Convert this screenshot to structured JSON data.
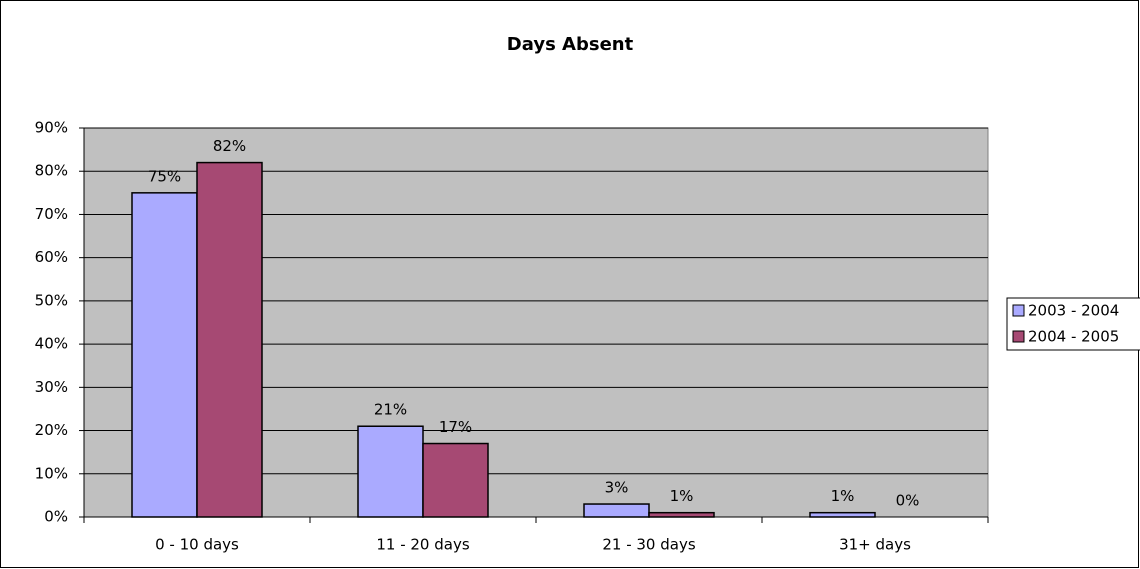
{
  "chart_data": {
    "type": "bar",
    "title": "Days Absent",
    "categories": [
      "0 - 10 days",
      "11 - 20 days",
      "21 - 30 days",
      "31+ days"
    ],
    "series": [
      {
        "name": "2003 - 2004",
        "color": "#aaaaff",
        "values": [
          75,
          21,
          3,
          1
        ],
        "value_labels": [
          "75%",
          "21%",
          "3%",
          "1%"
        ]
      },
      {
        "name": "2004 - 2005",
        "color": "#a64973",
        "values": [
          82,
          17,
          1,
          0
        ],
        "value_labels": [
          "82%",
          "17%",
          "1%",
          "0%"
        ]
      }
    ],
    "ylim": [
      0,
      90
    ],
    "yticks": [
      {
        "value": 0,
        "label": "0%"
      },
      {
        "value": 10,
        "label": "10%"
      },
      {
        "value": 20,
        "label": "20%"
      },
      {
        "value": 30,
        "label": "30%"
      },
      {
        "value": 40,
        "label": "40%"
      },
      {
        "value": 50,
        "label": "50%"
      },
      {
        "value": 60,
        "label": "60%"
      },
      {
        "value": 70,
        "label": "70%"
      },
      {
        "value": 80,
        "label": "80%"
      },
      {
        "value": 90,
        "label": "90%"
      }
    ],
    "grid": true,
    "legend": "right"
  }
}
